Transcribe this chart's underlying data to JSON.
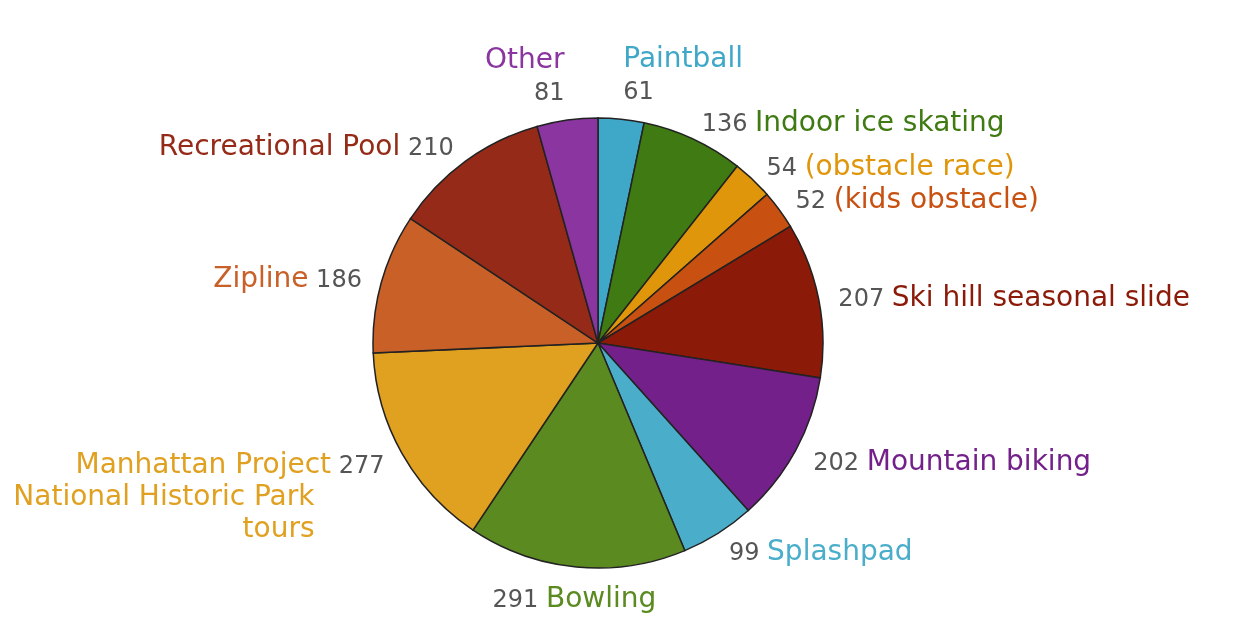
{
  "chart_data": {
    "type": "pie",
    "categories": [
      "Paintball",
      "Indoor ice skating",
      "(obstacle race)",
      "(kids obstacle)",
      "Ski hill seasonal slide",
      "Mountain biking",
      "Splashpad",
      "Bowling",
      "Manhattan Project National Historic Park tours",
      "Zipline",
      "Recreational Pool",
      "Other"
    ],
    "values": [
      61,
      136,
      54,
      52,
      207,
      202,
      99,
      291,
      277,
      186,
      210,
      81
    ],
    "colors": [
      "#3fa8c8",
      "#3f7a12",
      "#e0960a",
      "#c85010",
      "#8b1a08",
      "#74208a",
      "#4aaecb",
      "#5a8a20",
      "#e0a020",
      "#c86028",
      "#952a18",
      "#8a35a0"
    ],
    "data_labels": true
  }
}
